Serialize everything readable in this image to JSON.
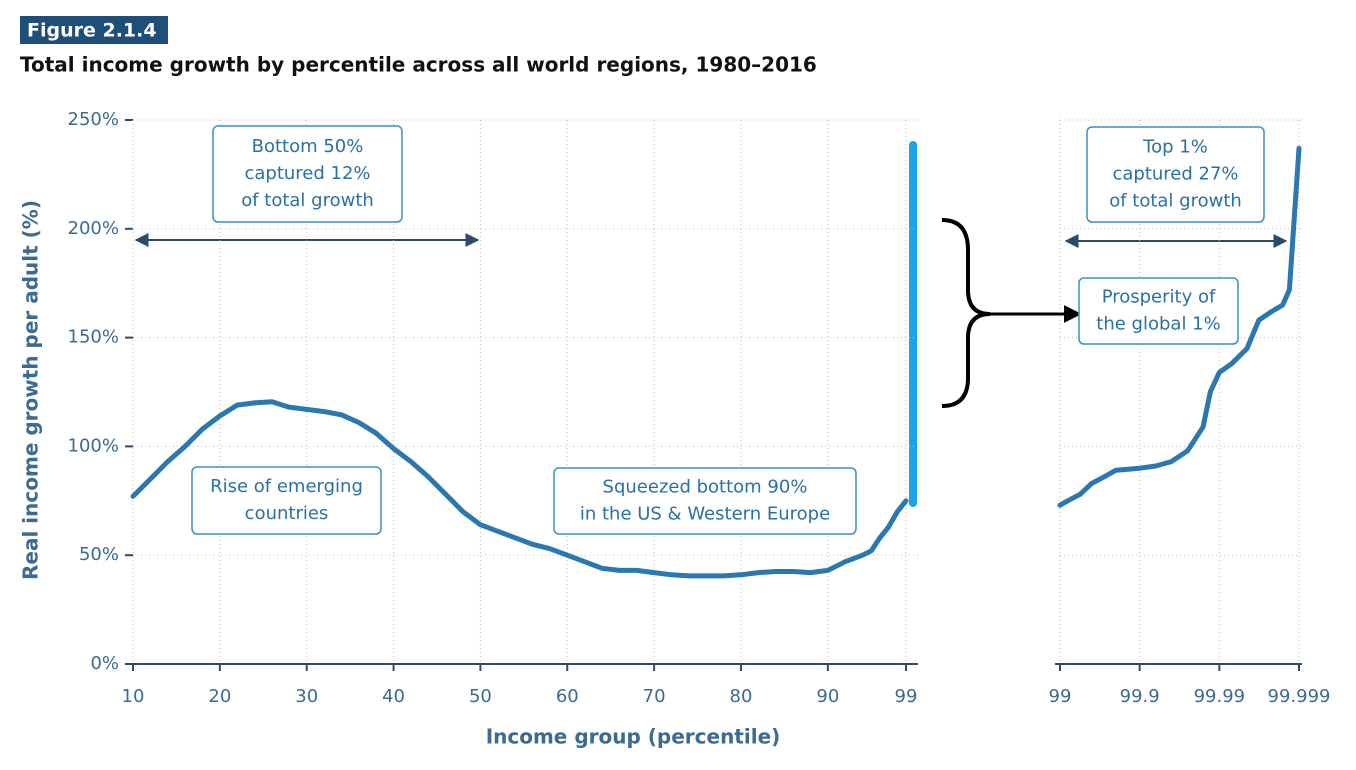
{
  "chart_data": [
    {
      "type": "line",
      "figure_label": "Figure 2.1.4",
      "title": "Total income growth by percentile across all world regions, 1980–2016",
      "ylabel": "Real income growth per adult (%)",
      "xlabel": "Income group (percentile)",
      "color": "#2b78b0",
      "grid": true,
      "x": [
        10,
        12,
        14,
        16,
        18,
        20,
        22,
        24,
        26,
        28,
        30,
        32,
        34,
        36,
        38,
        40,
        42,
        44,
        46,
        48,
        50,
        52,
        54,
        56,
        58,
        60,
        62,
        64,
        66,
        68,
        70,
        72,
        74,
        76,
        78,
        80,
        82,
        84,
        86,
        88,
        90,
        92,
        94,
        95,
        96,
        97,
        98,
        99
      ],
      "values": [
        77,
        85,
        93,
        100,
        108,
        114,
        119,
        120,
        120.5,
        118,
        117,
        116,
        114.5,
        111,
        106,
        99,
        93,
        86,
        78,
        70,
        64,
        61,
        58,
        55,
        53,
        50,
        47,
        44,
        43,
        43,
        42,
        41,
        40.5,
        40.5,
        40.5,
        41,
        42,
        42.5,
        42.5,
        42,
        43,
        47,
        50,
        52,
        58,
        63,
        70,
        75
      ],
      "xlim": [
        10,
        99
      ],
      "xticks": [
        10,
        20,
        30,
        40,
        50,
        60,
        70,
        80,
        90,
        99
      ],
      "ylim": [
        0,
        250
      ],
      "yticks": [
        {
          "value": 0,
          "label": "0%"
        },
        {
          "value": 50,
          "label": "50%"
        },
        {
          "value": 100,
          "label": "100%"
        },
        {
          "value": 150,
          "label": "150%"
        },
        {
          "value": 200,
          "label": "200%"
        },
        {
          "value": 250,
          "label": "250%"
        }
      ],
      "annotations": [
        {
          "lines": [
            "Bottom 50%",
            "captured 12%",
            "of total growth"
          ]
        },
        {
          "lines": [
            "Rise of emerging",
            "countries"
          ]
        },
        {
          "lines": [
            "Squeezed bottom 90%",
            "in the US & Western Europe"
          ]
        }
      ]
    },
    {
      "type": "line",
      "color": "#2b78b0",
      "grid": true,
      "xscale": "log-complement",
      "x": [
        99,
        99.2,
        99.44,
        99.6,
        99.72,
        99.8,
        99.86,
        99.9,
        99.937,
        99.96,
        99.975,
        99.984,
        99.987,
        99.99,
        99.993,
        99.9955,
        99.9968,
        99.9978,
        99.9984,
        99.99868,
        99.999
      ],
      "values": [
        73,
        75,
        78,
        83,
        86,
        89,
        89.5,
        90,
        91,
        93,
        98,
        109,
        125,
        134,
        138,
        145,
        158,
        162,
        165,
        172,
        237
      ],
      "xlim": [
        99,
        99.999
      ],
      "xticks": [
        99,
        99.9,
        99.99,
        99.999
      ],
      "ylim": [
        0,
        250
      ],
      "annotations": [
        {
          "lines": [
            "Top 1%",
            "captured 27%",
            "of total growth"
          ]
        },
        {
          "lines": [
            "Prosperity of",
            "the global 1%"
          ]
        }
      ]
    }
  ]
}
